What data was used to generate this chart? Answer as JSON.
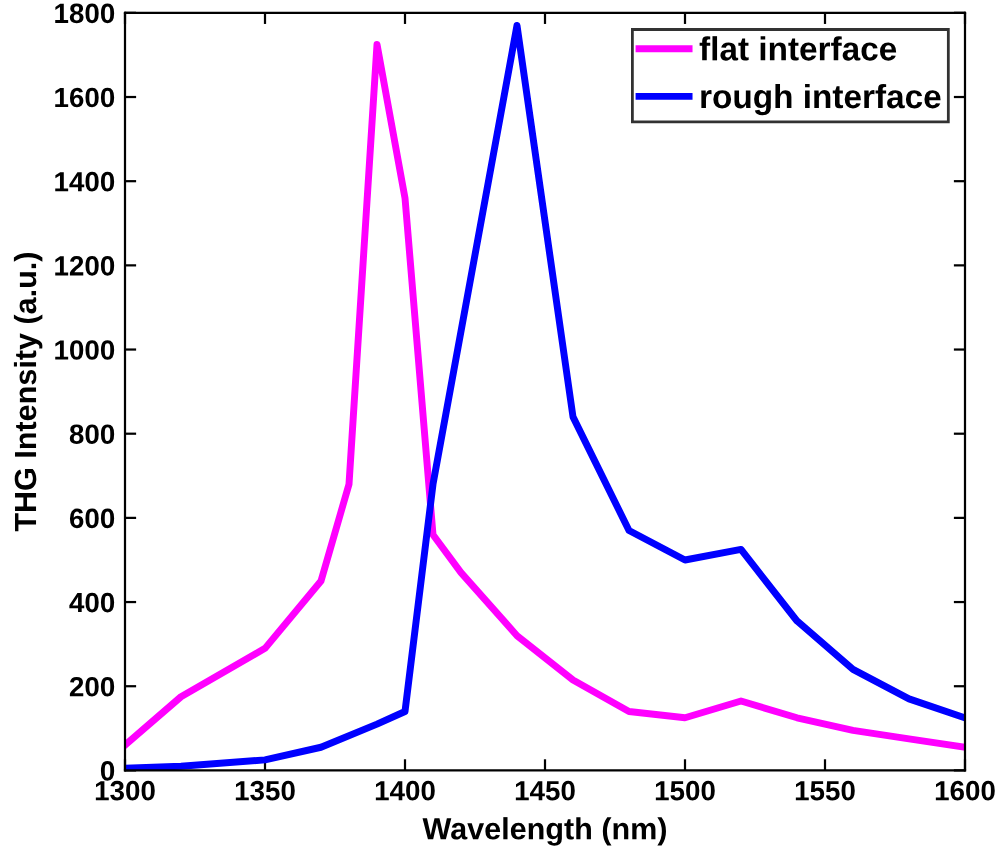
{
  "chart_data": {
    "type": "line",
    "xlabel": "Wavelength (nm)",
    "ylabel": "THG Intensity (a.u.)",
    "xlim": [
      1300,
      1600
    ],
    "xticks": [
      1300,
      1350,
      1400,
      1450,
      1500,
      1550,
      1600
    ],
    "ylim": [
      0,
      1800
    ],
    "yticks": [
      0,
      200,
      400,
      600,
      800,
      1000,
      1200,
      1400,
      1600,
      1800
    ],
    "grid": false,
    "legend": "top right",
    "marker": "none",
    "line_style": "solid",
    "series": [
      {
        "name": "flat interface",
        "color": "#ff00ff",
        "x": [
          1300,
          1320,
          1350,
          1370,
          1380,
          1390,
          1400,
          1410,
          1420,
          1440,
          1460,
          1480,
          1500,
          1520,
          1540,
          1560,
          1580,
          1600
        ],
        "values": [
          60,
          175,
          290,
          450,
          680,
          1725,
          1360,
          560,
          470,
          320,
          215,
          140,
          125,
          165,
          125,
          95,
          75,
          55
        ]
      },
      {
        "name": "rough interface",
        "color": "#0000ff",
        "x": [
          1300,
          1320,
          1350,
          1370,
          1390,
          1400,
          1410,
          1440,
          1460,
          1480,
          1500,
          1520,
          1540,
          1560,
          1580,
          1600
        ],
        "values": [
          5,
          10,
          25,
          55,
          110,
          140,
          680,
          1770,
          840,
          570,
          500,
          525,
          355,
          240,
          170,
          125
        ]
      }
    ]
  }
}
